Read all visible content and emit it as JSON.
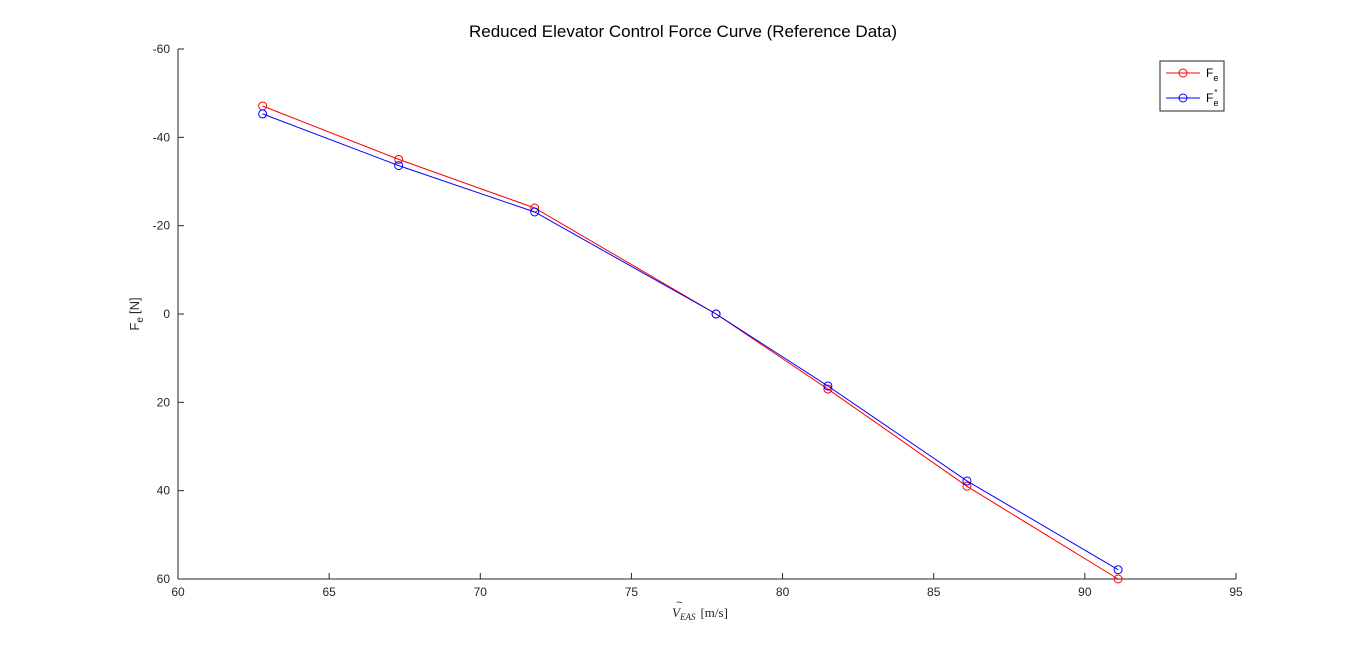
{
  "chart_data": {
    "type": "line",
    "title": "Reduced Elevator Control Force Curve (Reference Data)",
    "xlabel_main": "V",
    "xlabel_sub": "EAS",
    "xlabel_unit": "[m/s]",
    "ylabel_main": "F",
    "ylabel_sub": "e",
    "ylabel_unit": "[N]",
    "xlim": [
      60,
      95
    ],
    "ylim": [
      60,
      -60
    ],
    "y_reversed": true,
    "grid": false,
    "legend_position": "top-right",
    "xticks": [
      60,
      65,
      70,
      75,
      80,
      85,
      90,
      95
    ],
    "yticks": [
      -60,
      -40,
      -20,
      0,
      20,
      40,
      60
    ],
    "series": [
      {
        "name_main": "F",
        "name_sub": "e",
        "name_sup": "",
        "color": "#ff0000",
        "marker": "circle",
        "x": [
          62.8,
          67.3,
          71.8,
          77.8,
          81.5,
          86.1,
          91.1
        ],
        "y": [
          -47.1,
          -35.0,
          -24.0,
          0.0,
          17.0,
          39.0,
          60.0
        ]
      },
      {
        "name_main": "F",
        "name_sub": "e",
        "name_sup": "*",
        "color": "#0000ff",
        "marker": "circle",
        "x": [
          62.8,
          67.3,
          71.8,
          77.8,
          81.5,
          86.1,
          91.1
        ],
        "y": [
          -45.3,
          -33.6,
          -23.1,
          0.0,
          16.3,
          37.8,
          57.9
        ]
      }
    ]
  }
}
